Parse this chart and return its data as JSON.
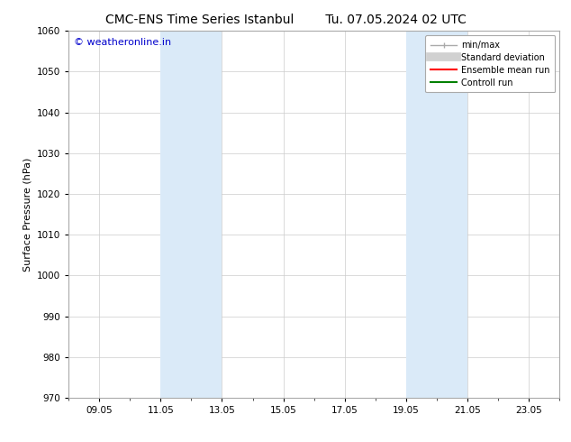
{
  "title_left": "CMC-ENS Time Series Istanbul",
  "title_right": "Tu. 07.05.2024 02 UTC",
  "ylabel": "Surface Pressure (hPa)",
  "ylim": [
    970,
    1060
  ],
  "yticks": [
    970,
    980,
    990,
    1000,
    1010,
    1020,
    1030,
    1040,
    1050,
    1060
  ],
  "xtick_labels": [
    "09.05",
    "11.05",
    "13.05",
    "15.05",
    "17.05",
    "19.05",
    "21.05",
    "23.05"
  ],
  "xtick_positions": [
    2,
    4,
    6,
    8,
    10,
    12,
    14,
    16
  ],
  "xlim": [
    1,
    17
  ],
  "shaded_bands": [
    {
      "xmin": 4,
      "xmax": 6,
      "color": "#daeaf8"
    },
    {
      "xmin": 12,
      "xmax": 14,
      "color": "#daeaf8"
    }
  ],
  "background_color": "#ffffff",
  "plot_bg_color": "#ffffff",
  "watermark_text": "© weatheronline.in",
  "watermark_color": "#0000cc",
  "legend_labels": [
    "min/max",
    "Standard deviation",
    "Ensemble mean run",
    "Controll run"
  ],
  "legend_colors": [
    "#aaaaaa",
    "#cccccc",
    "#ff0000",
    "#008000"
  ],
  "title_fontsize": 10,
  "axis_label_fontsize": 8,
  "tick_fontsize": 7.5,
  "watermark_fontsize": 8,
  "legend_fontsize": 7
}
